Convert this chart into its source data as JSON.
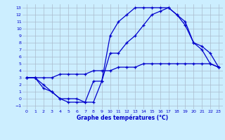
{
  "title": "Graphe des températures (°C)",
  "bg_color": "#cceeff",
  "grid_color": "#aabbcc",
  "line_color": "#0000cc",
  "xlim": [
    -0.5,
    23.5
  ],
  "ylim": [
    -1.5,
    13.5
  ],
  "xticks": [
    0,
    1,
    2,
    3,
    4,
    5,
    6,
    7,
    8,
    9,
    10,
    11,
    12,
    13,
    14,
    15,
    16,
    17,
    18,
    19,
    20,
    21,
    22,
    23
  ],
  "yticks": [
    -1,
    0,
    1,
    2,
    3,
    4,
    5,
    6,
    7,
    8,
    9,
    10,
    11,
    12,
    13
  ],
  "line1_x": [
    0,
    1,
    2,
    3,
    4,
    5,
    6,
    7,
    8,
    9,
    10,
    11,
    12,
    13,
    14,
    15,
    16,
    17,
    18,
    19,
    20,
    21,
    22,
    23
  ],
  "line1_y": [
    3,
    3,
    2,
    1,
    0,
    0,
    0,
    -0.5,
    2.5,
    2.5,
    9,
    11,
    12,
    13,
    13,
    13,
    13,
    13,
    12,
    11,
    8,
    7,
    5,
    4.5
  ],
  "line2_x": [
    0,
    1,
    2,
    3,
    4,
    5,
    6,
    7,
    8,
    9,
    10,
    11,
    12,
    13,
    14,
    15,
    16,
    17,
    18,
    19,
    20,
    21,
    22,
    23
  ],
  "line2_y": [
    3,
    3,
    1.5,
    1,
    0,
    -0.5,
    -0.5,
    -0.5,
    -0.5,
    2.5,
    6.5,
    6.5,
    8,
    9,
    10.5,
    12,
    12.5,
    13,
    12,
    10.5,
    8,
    7.5,
    6.5,
    4.5
  ],
  "line3_x": [
    0,
    1,
    2,
    3,
    4,
    5,
    6,
    7,
    8,
    9,
    10,
    11,
    12,
    13,
    14,
    15,
    16,
    17,
    18,
    19,
    20,
    21,
    22,
    23
  ],
  "line3_y": [
    3,
    3,
    3,
    3,
    3.5,
    3.5,
    3.5,
    3.5,
    4,
    4,
    4,
    4.5,
    4.5,
    4.5,
    5,
    5,
    5,
    5,
    5,
    5,
    5,
    5,
    5,
    4.5
  ]
}
